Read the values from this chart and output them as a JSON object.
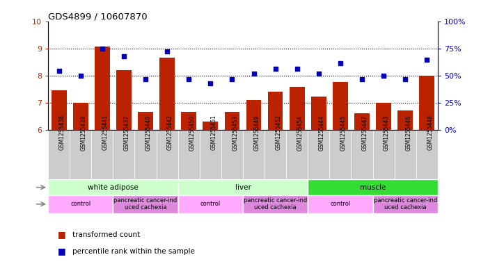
{
  "title": "GDS4899 / 10607870",
  "samples": [
    "GSM1255438",
    "GSM1255439",
    "GSM1255441",
    "GSM1255437",
    "GSM1255440",
    "GSM1255442",
    "GSM1255450",
    "GSM1255451",
    "GSM1255453",
    "GSM1255449",
    "GSM1255452",
    "GSM1255454",
    "GSM1255444",
    "GSM1255445",
    "GSM1255447",
    "GSM1255443",
    "GSM1255446",
    "GSM1255448"
  ],
  "transformed_count": [
    7.48,
    7.02,
    9.08,
    8.21,
    6.67,
    8.67,
    6.68,
    6.32,
    6.67,
    7.12,
    7.43,
    7.6,
    7.24,
    7.78,
    6.62,
    7.02,
    6.72,
    8.02
  ],
  "percentile_rank": [
    55,
    50,
    75,
    68,
    47,
    73,
    47,
    43,
    47,
    52,
    57,
    57,
    52,
    62,
    47,
    50,
    47,
    65
  ],
  "ylim_left": [
    6,
    10
  ],
  "ylim_right": [
    0,
    100
  ],
  "yticks_left": [
    6,
    7,
    8,
    9,
    10
  ],
  "yticks_right": [
    0,
    25,
    50,
    75,
    100
  ],
  "bar_color": "#bb2200",
  "dot_color": "#0000bb",
  "tissue_groups": [
    {
      "label": "white adipose",
      "start": 0,
      "end": 6,
      "color": "#ccffcc"
    },
    {
      "label": "liver",
      "start": 6,
      "end": 12,
      "color": "#ccffcc"
    },
    {
      "label": "muscle",
      "start": 12,
      "end": 18,
      "color": "#33dd33"
    }
  ],
  "disease_groups": [
    {
      "label": "control",
      "start": 0,
      "end": 3,
      "color": "#ffaaff"
    },
    {
      "label": "pancreatic cancer-ind\nuced cachexia",
      "start": 3,
      "end": 6,
      "color": "#dd88dd"
    },
    {
      "label": "control",
      "start": 6,
      "end": 9,
      "color": "#ffaaff"
    },
    {
      "label": "pancreatic cancer-ind\nuced cachexia",
      "start": 9,
      "end": 12,
      "color": "#dd88dd"
    },
    {
      "label": "control",
      "start": 12,
      "end": 15,
      "color": "#ffaaff"
    },
    {
      "label": "pancreatic cancer-ind\nuced cachexia",
      "start": 15,
      "end": 18,
      "color": "#dd88dd"
    }
  ]
}
